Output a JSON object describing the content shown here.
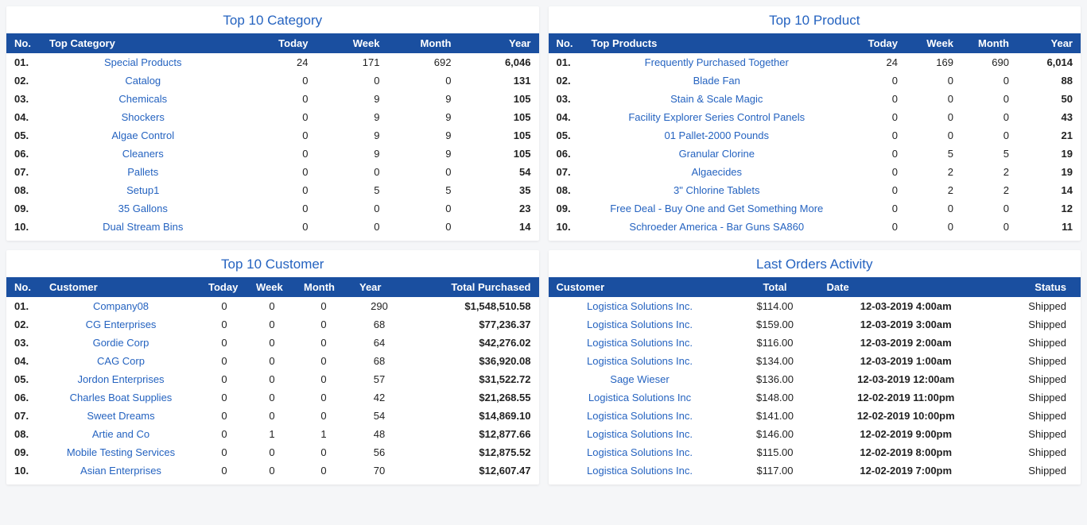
{
  "panels": {
    "category": {
      "title": "Top 10 Category",
      "headers": {
        "no": "No.",
        "name": "Top Category",
        "today": "Today",
        "week": "Week",
        "month": "Month",
        "year": "Year"
      },
      "rows": [
        {
          "no": "01.",
          "name": "Special Products",
          "today": "24",
          "week": "171",
          "month": "692",
          "year": "6,046"
        },
        {
          "no": "02.",
          "name": "Catalog",
          "today": "0",
          "week": "0",
          "month": "0",
          "year": "131"
        },
        {
          "no": "03.",
          "name": "Chemicals",
          "today": "0",
          "week": "9",
          "month": "9",
          "year": "105"
        },
        {
          "no": "04.",
          "name": "Shockers",
          "today": "0",
          "week": "9",
          "month": "9",
          "year": "105"
        },
        {
          "no": "05.",
          "name": "Algae Control",
          "today": "0",
          "week": "9",
          "month": "9",
          "year": "105"
        },
        {
          "no": "06.",
          "name": "Cleaners",
          "today": "0",
          "week": "9",
          "month": "9",
          "year": "105"
        },
        {
          "no": "07.",
          "name": "Pallets",
          "today": "0",
          "week": "0",
          "month": "0",
          "year": "54"
        },
        {
          "no": "08.",
          "name": "Setup1",
          "today": "0",
          "week": "5",
          "month": "5",
          "year": "35"
        },
        {
          "no": "09.",
          "name": "35 Gallons",
          "today": "0",
          "week": "0",
          "month": "0",
          "year": "23"
        },
        {
          "no": "10.",
          "name": "Dual Stream Bins",
          "today": "0",
          "week": "0",
          "month": "0",
          "year": "14"
        }
      ]
    },
    "product": {
      "title": "Top 10 Product",
      "headers": {
        "no": "No.",
        "name": "Top Products",
        "today": "Today",
        "week": "Week",
        "month": "Month",
        "year": "Year"
      },
      "rows": [
        {
          "no": "01.",
          "name": "Frequently Purchased Together",
          "today": "24",
          "week": "169",
          "month": "690",
          "year": "6,014"
        },
        {
          "no": "02.",
          "name": "Blade Fan",
          "today": "0",
          "week": "0",
          "month": "0",
          "year": "88"
        },
        {
          "no": "03.",
          "name": "Stain & Scale Magic",
          "today": "0",
          "week": "0",
          "month": "0",
          "year": "50"
        },
        {
          "no": "04.",
          "name": "Facility Explorer Series Control Panels",
          "today": "0",
          "week": "0",
          "month": "0",
          "year": "43"
        },
        {
          "no": "05.",
          "name": "01 Pallet-2000 Pounds",
          "today": "0",
          "week": "0",
          "month": "0",
          "year": "21"
        },
        {
          "no": "06.",
          "name": "Granular Clorine",
          "today": "0",
          "week": "5",
          "month": "5",
          "year": "19"
        },
        {
          "no": "07.",
          "name": "Algaecides",
          "today": "0",
          "week": "2",
          "month": "2",
          "year": "19"
        },
        {
          "no": "08.",
          "name": "3\" Chlorine Tablets",
          "today": "0",
          "week": "2",
          "month": "2",
          "year": "14"
        },
        {
          "no": "09.",
          "name": "Free Deal - Buy One and Get Something More",
          "today": "0",
          "week": "0",
          "month": "0",
          "year": "12"
        },
        {
          "no": "10.",
          "name": "Schroeder America - Bar Guns SA860",
          "today": "0",
          "week": "0",
          "month": "0",
          "year": "11"
        }
      ]
    },
    "customer": {
      "title": "Top 10 Customer",
      "headers": {
        "no": "No.",
        "name": "Customer",
        "today": "Today",
        "week": "Week",
        "month": "Month",
        "year": "Year",
        "total": "Total Purchased"
      },
      "rows": [
        {
          "no": "01.",
          "name": "Company08",
          "today": "0",
          "week": "0",
          "month": "0",
          "year": "290",
          "total": "$1,548,510.58"
        },
        {
          "no": "02.",
          "name": "CG Enterprises",
          "today": "0",
          "week": "0",
          "month": "0",
          "year": "68",
          "total": "$77,236.37"
        },
        {
          "no": "03.",
          "name": "Gordie Corp",
          "today": "0",
          "week": "0",
          "month": "0",
          "year": "64",
          "total": "$42,276.02"
        },
        {
          "no": "04.",
          "name": "CAG Corp",
          "today": "0",
          "week": "0",
          "month": "0",
          "year": "68",
          "total": "$36,920.08"
        },
        {
          "no": "05.",
          "name": "Jordon Enterprises",
          "today": "0",
          "week": "0",
          "month": "0",
          "year": "57",
          "total": "$31,522.72"
        },
        {
          "no": "06.",
          "name": "Charles Boat Supplies",
          "today": "0",
          "week": "0",
          "month": "0",
          "year": "42",
          "total": "$21,268.55"
        },
        {
          "no": "07.",
          "name": "Sweet Dreams",
          "today": "0",
          "week": "0",
          "month": "0",
          "year": "54",
          "total": "$14,869.10"
        },
        {
          "no": "08.",
          "name": "Artie and Co",
          "today": "0",
          "week": "1",
          "month": "1",
          "year": "48",
          "total": "$12,877.66"
        },
        {
          "no": "09.",
          "name": "Mobile Testing Services",
          "today": "0",
          "week": "0",
          "month": "0",
          "year": "56",
          "total": "$12,875.52"
        },
        {
          "no": "10.",
          "name": "Asian Enterprises",
          "today": "0",
          "week": "0",
          "month": "0",
          "year": "70",
          "total": "$12,607.47"
        }
      ]
    },
    "orders": {
      "title": "Last Orders Activity",
      "headers": {
        "customer": "Customer",
        "total": "Total",
        "date": "Date",
        "status": "Status"
      },
      "rows": [
        {
          "customer": "Logistica Solutions Inc.",
          "total": "$114.00",
          "date": "12-03-2019 4:00am",
          "status": "Shipped"
        },
        {
          "customer": "Logistica Solutions Inc.",
          "total": "$159.00",
          "date": "12-03-2019 3:00am",
          "status": "Shipped"
        },
        {
          "customer": "Logistica Solutions Inc.",
          "total": "$116.00",
          "date": "12-03-2019 2:00am",
          "status": "Shipped"
        },
        {
          "customer": "Logistica Solutions Inc.",
          "total": "$134.00",
          "date": "12-03-2019 1:00am",
          "status": "Shipped"
        },
        {
          "customer": "Sage Wieser",
          "total": "$136.00",
          "date": "12-03-2019 12:00am",
          "status": "Shipped"
        },
        {
          "customer": "Logistica Solutions Inc",
          "total": "$148.00",
          "date": "12-02-2019 11:00pm",
          "status": "Shipped"
        },
        {
          "customer": "Logistica Solutions Inc.",
          "total": "$141.00",
          "date": "12-02-2019 10:00pm",
          "status": "Shipped"
        },
        {
          "customer": "Logistica Solutions Inc.",
          "total": "$146.00",
          "date": "12-02-2019 9:00pm",
          "status": "Shipped"
        },
        {
          "customer": "Logistica Solutions Inc.",
          "total": "$115.00",
          "date": "12-02-2019 8:00pm",
          "status": "Shipped"
        },
        {
          "customer": "Logistica Solutions Inc.",
          "total": "$117.00",
          "date": "12-02-2019 7:00pm",
          "status": "Shipped"
        }
      ]
    }
  }
}
